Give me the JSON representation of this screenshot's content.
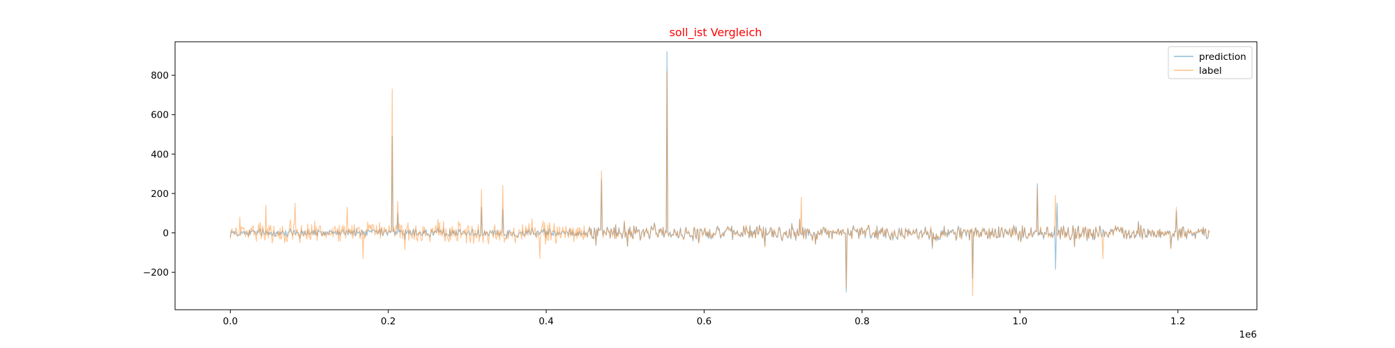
{
  "chart_data": {
    "type": "line",
    "title": "soll_ist Vergleich",
    "title_color": "#ff0000",
    "xlabel": "",
    "ylabel": "",
    "x_offset_label": "1e6",
    "xlim": [
      -70000,
      1300000
    ],
    "ylim": [
      -390,
      970
    ],
    "x_ticks": [
      0,
      200000,
      400000,
      600000,
      800000,
      1000000,
      1200000
    ],
    "x_tick_labels": [
      "0.0",
      "0.2",
      "0.4",
      "0.6",
      "0.8",
      "1.0",
      "1.2"
    ],
    "y_ticks": [
      -200,
      0,
      200,
      400,
      600,
      800
    ],
    "y_tick_labels": [
      "−200",
      "0",
      "200",
      "400",
      "600",
      "800"
    ],
    "grid": false,
    "legend_position": "top-right",
    "x_range": [
      0,
      1240000
    ],
    "noise_amplitude_approx": 35,
    "series": [
      {
        "name": "prediction",
        "color": "#1f77b4",
        "opacity": 0.45,
        "spikes": [
          [
            205000,
            490
          ],
          [
            212000,
            100
          ],
          [
            318000,
            130
          ],
          [
            345000,
            120
          ],
          [
            470000,
            270
          ],
          [
            553000,
            920
          ],
          [
            780000,
            -300
          ],
          [
            940000,
            -230
          ],
          [
            1022000,
            250
          ],
          [
            1045000,
            -185
          ],
          [
            1047000,
            150
          ],
          [
            1198000,
            110
          ]
        ]
      },
      {
        "name": "label",
        "color": "#ff7f0e",
        "opacity": 0.45,
        "spikes": [
          [
            12000,
            80
          ],
          [
            45000,
            140
          ],
          [
            82000,
            150
          ],
          [
            148000,
            130
          ],
          [
            168000,
            -130
          ],
          [
            205000,
            730
          ],
          [
            212000,
            160
          ],
          [
            318000,
            220
          ],
          [
            345000,
            240
          ],
          [
            392000,
            -130
          ],
          [
            470000,
            315
          ],
          [
            553000,
            820
          ],
          [
            723000,
            180
          ],
          [
            780000,
            -280
          ],
          [
            940000,
            -320
          ],
          [
            1022000,
            230
          ],
          [
            1045000,
            190
          ],
          [
            1105000,
            -130
          ],
          [
            1198000,
            130
          ]
        ]
      }
    ]
  }
}
